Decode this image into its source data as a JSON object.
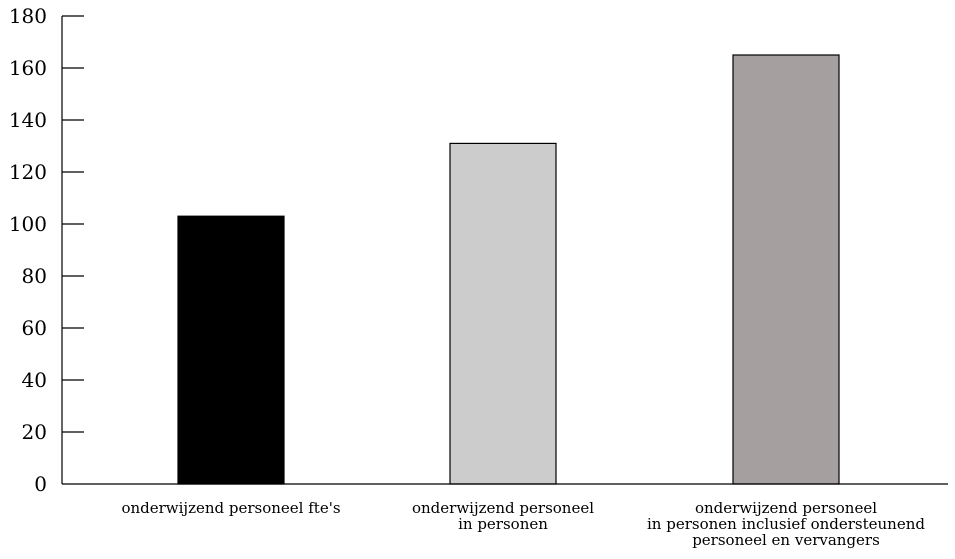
{
  "chart_data": {
    "type": "bar",
    "title": "",
    "xlabel": "",
    "ylabel": "",
    "ylim": [
      0,
      180
    ],
    "yticks": [
      0,
      20,
      40,
      60,
      80,
      100,
      120,
      140,
      160,
      180
    ],
    "grid": false,
    "legend": "none",
    "categories": [
      [
        "onderwijzend personeel fte's"
      ],
      [
        "onderwijzend personeel",
        "in personen"
      ],
      [
        "onderwijzend personeel",
        "in personen inclusief ondersteunend",
        "personeel en vervangers"
      ]
    ],
    "values": [
      103,
      131,
      165
    ],
    "colors": [
      "#000000",
      "#cccccc",
      "#a59f9f"
    ]
  }
}
